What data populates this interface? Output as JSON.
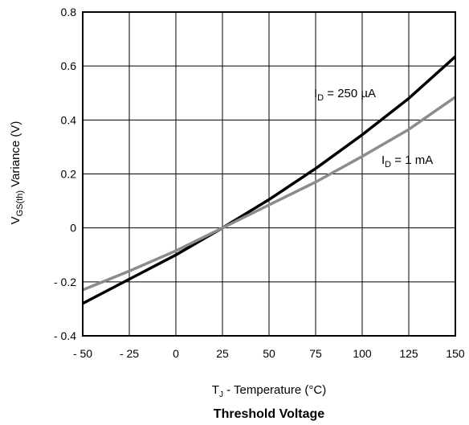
{
  "chart_data": {
    "type": "line",
    "title": "Threshold Voltage",
    "xlabel": {
      "main": "T",
      "sub": "J",
      "rest": " - Temperature (°C)"
    },
    "ylabel": {
      "main": "V",
      "sub": "GS(th)",
      "rest": " Variance (V)"
    },
    "xlim": [
      -50,
      150
    ],
    "ylim": [
      -0.4,
      0.8
    ],
    "x_ticks": [
      -50,
      -25,
      0,
      25,
      50,
      75,
      100,
      125,
      150
    ],
    "x_tick_labels": [
      "- 50",
      "- 25",
      "0",
      "25",
      "50",
      "75",
      "100",
      "125",
      "150"
    ],
    "y_ticks": [
      -0.4,
      -0.2,
      0,
      0.2,
      0.4,
      0.6,
      0.8
    ],
    "y_tick_labels": [
      "- 0.4",
      "- 0.2",
      "0",
      "0.2",
      "0.4",
      "0.6",
      "0.8"
    ],
    "grid": true,
    "series": [
      {
        "label": {
          "main": "I",
          "sub": "D",
          "rest": " = 250 µA"
        },
        "color": "#000000",
        "x": [
          -50,
          -25,
          0,
          25,
          50,
          75,
          100,
          125,
          150
        ],
        "y": [
          -0.28,
          -0.19,
          -0.1,
          0.0,
          0.105,
          0.22,
          0.345,
          0.48,
          0.635
        ]
      },
      {
        "label": {
          "main": "I",
          "sub": "D",
          "rest": " = 1 mA"
        },
        "color": "#8c8c8c",
        "x": [
          -50,
          -25,
          0,
          25,
          50,
          75,
          100,
          125,
          150
        ],
        "y": [
          -0.23,
          -0.16,
          -0.085,
          0.0,
          0.085,
          0.17,
          0.265,
          0.365,
          0.485
        ]
      }
    ]
  }
}
